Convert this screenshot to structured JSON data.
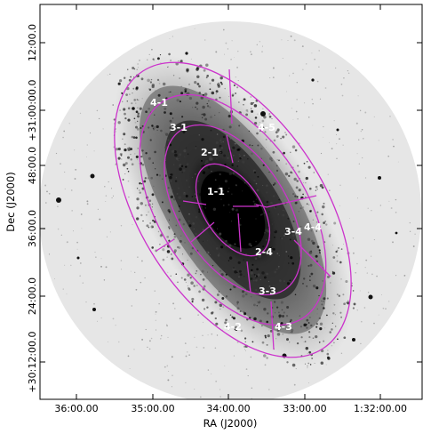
{
  "axes": {
    "xlabel": "RA (J2000)",
    "ylabel": "Dec (J2000)",
    "x_ticks": [
      "36:00.00",
      "35:00.00",
      "34:00.00",
      "33:00.00",
      "1:32:00.00"
    ],
    "y_ticks": [
      "12:00.0",
      "+31:00:00.0",
      "48:00.0",
      "36:00.0",
      "24:00.0",
      "+30:12:00.0"
    ]
  },
  "regions": {
    "r11": "1-1",
    "r21": "2-1",
    "r24": "2-4",
    "r31": "3-1",
    "r33": "3-3",
    "r34": "3-4",
    "r41": "4-1",
    "r42": "4-2",
    "r43": "4-3",
    "r44": "4-4",
    "r45": "4-5"
  },
  "colors": {
    "overlay": "#cc33cc",
    "sky_background": "#e6e6e6",
    "plot_border": "#000000"
  }
}
